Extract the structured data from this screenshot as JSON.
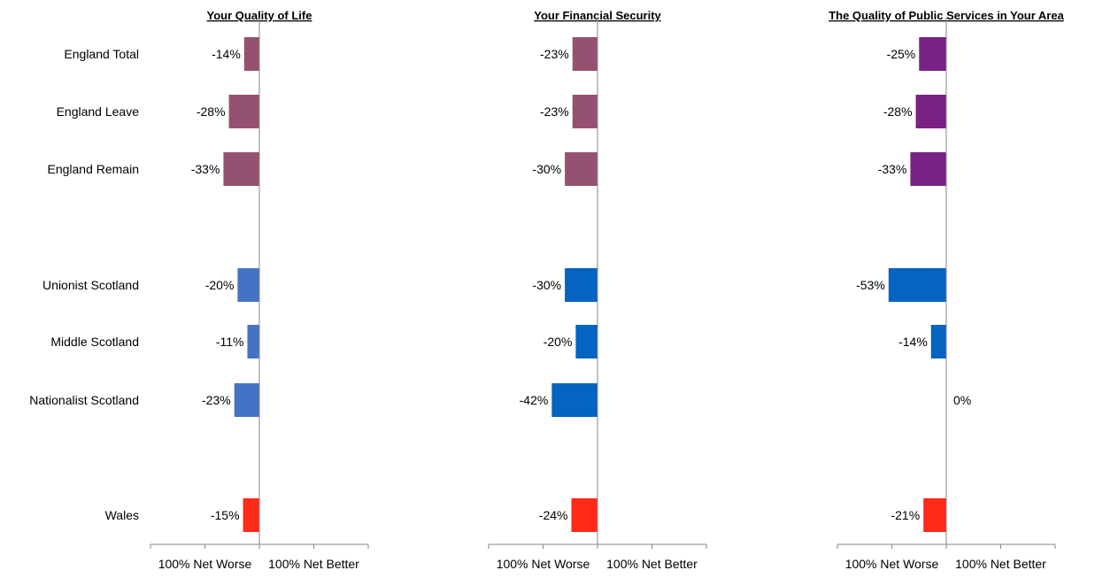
{
  "chart_data": {
    "type": "bar",
    "orientation": "horizontal",
    "categories": [
      "England Total",
      "England Leave",
      "England Remain",
      "Unionist Scotland",
      "Middle Scotland",
      "Nationalist Scotland",
      "Wales"
    ],
    "xlim": [
      -100,
      100
    ],
    "panels": [
      {
        "title": "Your Quality of Life",
        "values": [
          -14,
          -28,
          -33,
          -20,
          -11,
          -23,
          -15
        ],
        "labels": [
          "-14%",
          "-28%",
          "-33%",
          "-20%",
          "-11%",
          "-23%",
          "-15%"
        ],
        "colors": [
          "#955270",
          "#955270",
          "#955270",
          "#4472c4",
          "#4472c4",
          "#4472c4",
          "#ff2a1a"
        ],
        "xtick_left": "100% Net Worse",
        "xtick_right": "100% Net Better"
      },
      {
        "title": "Your Financial Security",
        "values": [
          -23,
          -23,
          -30,
          -30,
          -20,
          -42,
          -24
        ],
        "labels": [
          "-23%",
          "-23%",
          "-30%",
          "-30%",
          "-20%",
          "-42%",
          "-24%"
        ],
        "colors": [
          "#955270",
          "#955270",
          "#955270",
          "#0563c1",
          "#0563c1",
          "#0563c1",
          "#ff2a1a"
        ],
        "xtick_left": "100% Net Worse",
        "xtick_right": "100% Net Better"
      },
      {
        "title": "The Quality of Public Services in Your Area",
        "values": [
          -25,
          -28,
          -33,
          -53,
          -14,
          0,
          -21
        ],
        "labels": [
          "-25%",
          "-28%",
          "-33%",
          "-53%",
          "-14%",
          "0%",
          "-21%"
        ],
        "colors": [
          "#7a2185",
          "#7a2185",
          "#7a2185",
          "#0563c1",
          "#0563c1",
          "#0563c1",
          "#ff2a1a"
        ],
        "xtick_left": "100% Net Worse",
        "xtick_right": "100% Net Better"
      }
    ]
  }
}
